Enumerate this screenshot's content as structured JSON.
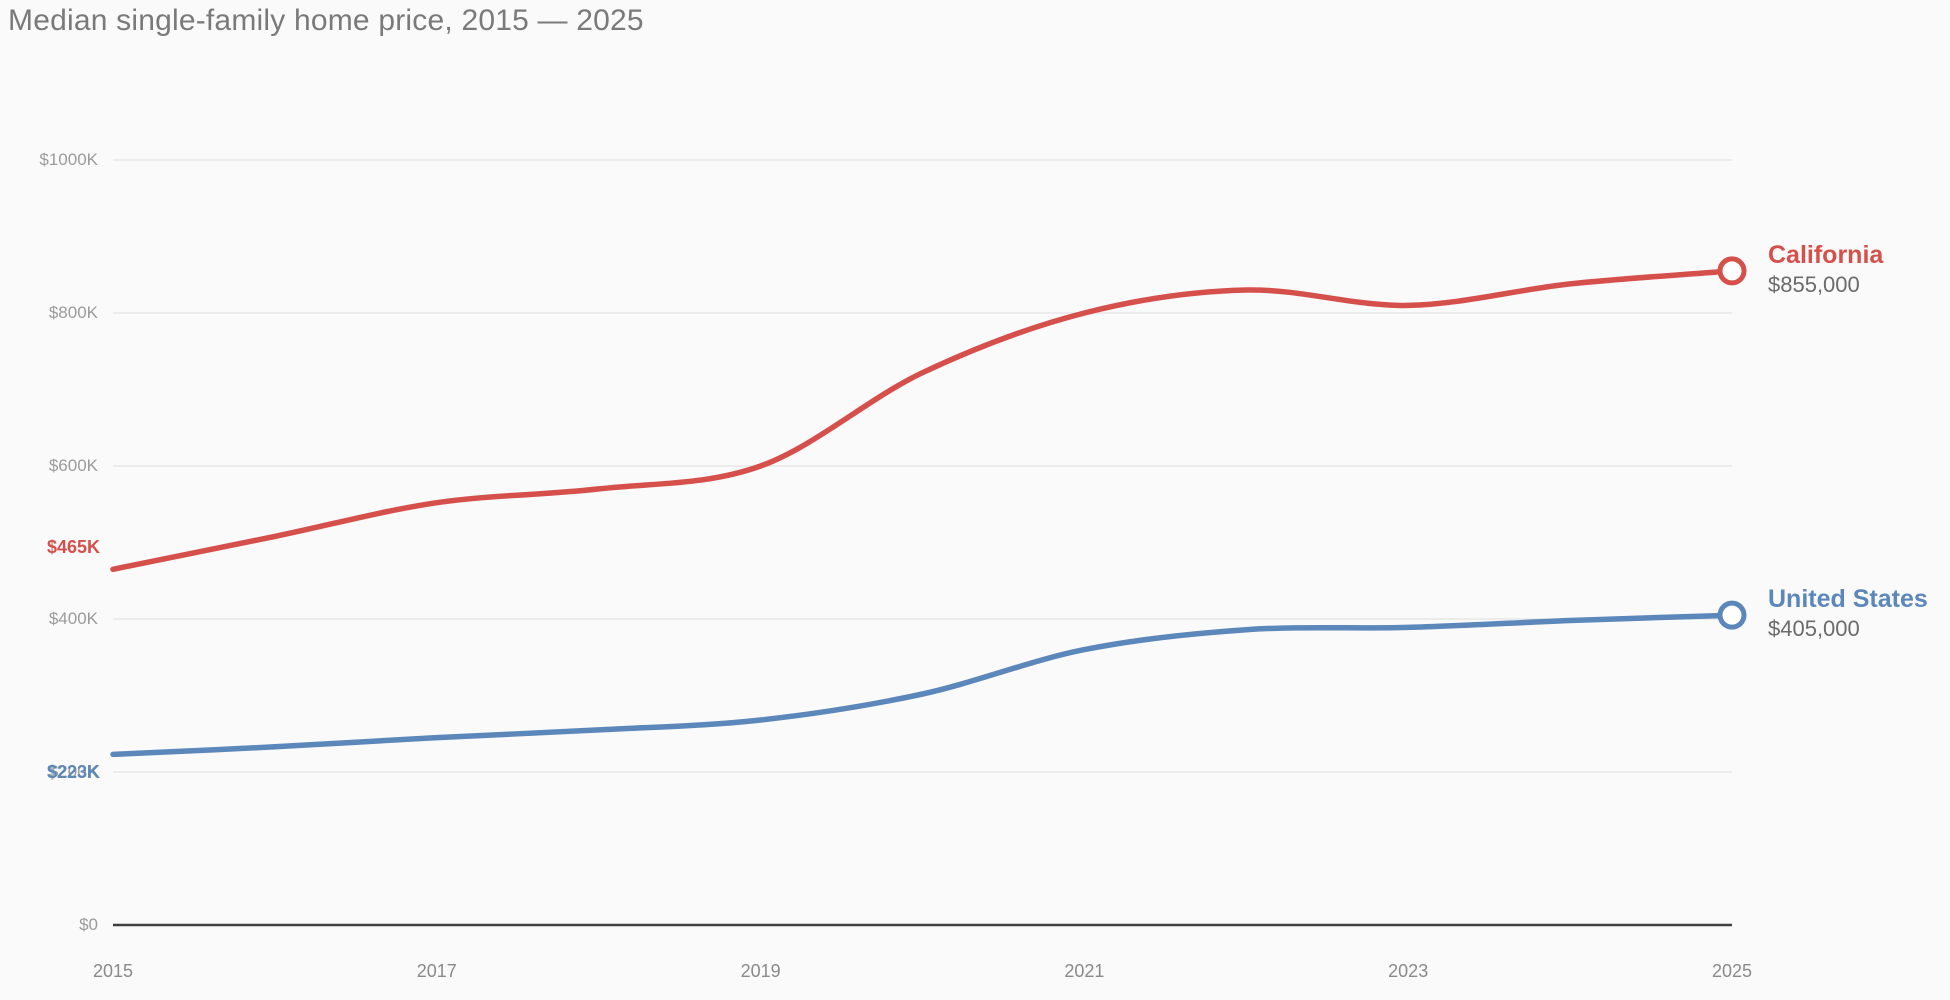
{
  "title": "Median single-family home price, 2015 — 2025",
  "colors": {
    "background": "#fafafa",
    "gridline": "#e8e8e8",
    "axis_line": "#3f3f3f",
    "tick_text": "#9b9b9b",
    "title_text": "#7a7a7a",
    "value_text": "#6b6b6b",
    "california_red": "#d6504b",
    "united_states_blue": "#5b87ba"
  },
  "chart_data": {
    "type": "line",
    "title": "Median single-family home price, 2015 — 2025",
    "x": [
      2015,
      2016,
      2017,
      2018,
      2019,
      2020,
      2021,
      2022,
      2023,
      2024,
      2025
    ],
    "xlim": [
      2015,
      2025
    ],
    "ylim": [
      0,
      1000
    ],
    "y_units": "USD thousands",
    "grid": "horizontal",
    "smooth": true,
    "x_ticks": [
      {
        "value": 2015,
        "label": "2015"
      },
      {
        "value": 2017,
        "label": "2017"
      },
      {
        "value": 2019,
        "label": "2019"
      },
      {
        "value": 2021,
        "label": "2021"
      },
      {
        "value": 2023,
        "label": "2023"
      },
      {
        "value": 2025,
        "label": "2025"
      }
    ],
    "y_ticks": [
      {
        "value": 0,
        "label": "$0"
      },
      {
        "value": 200,
        "label": "$200K"
      },
      {
        "value": 400,
        "label": "$400K"
      },
      {
        "value": 600,
        "label": "$600K"
      },
      {
        "value": 800,
        "label": "$800K"
      },
      {
        "value": 1000,
        "label": "$1000K"
      }
    ],
    "legend_position": "right-of-line-end",
    "series": [
      {
        "name": "California",
        "color": "#d6504b",
        "values": [
          465,
          508,
          552,
          570,
          600,
          722,
          800,
          830,
          810,
          838,
          855
        ],
        "start_label": "$465K",
        "start_label_side": "above",
        "end_value_label": "$855,000",
        "end_marker": "open-circle"
      },
      {
        "name": "United States",
        "color": "#5b87ba",
        "values": [
          223,
          233,
          245,
          255,
          268,
          302,
          360,
          386,
          389,
          398,
          405
        ],
        "start_label": "$223K",
        "start_label_side": "below",
        "end_value_label": "$405,000",
        "end_marker": "open-circle"
      }
    ]
  }
}
